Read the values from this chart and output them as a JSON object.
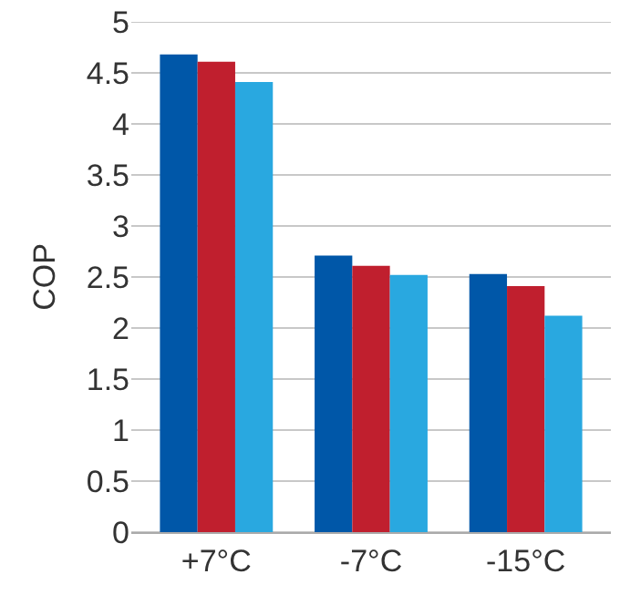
{
  "chart_data": {
    "type": "bar",
    "ylabel": "COP",
    "categories": [
      "+7°C",
      "-7°C",
      "-15°C"
    ],
    "series": [
      {
        "color": "#0057a8",
        "values": [
          4.68,
          2.71,
          2.53
        ]
      },
      {
        "color": "#c01f2e",
        "values": [
          4.61,
          2.61,
          2.41
        ]
      },
      {
        "color": "#29a8e0",
        "values": [
          4.41,
          2.52,
          2.12
        ]
      }
    ],
    "ylim": [
      0,
      5
    ],
    "yticks": [
      0,
      0.5,
      1,
      1.5,
      2,
      2.5,
      3,
      3.5,
      4,
      4.5,
      5
    ],
    "grid": "y"
  }
}
